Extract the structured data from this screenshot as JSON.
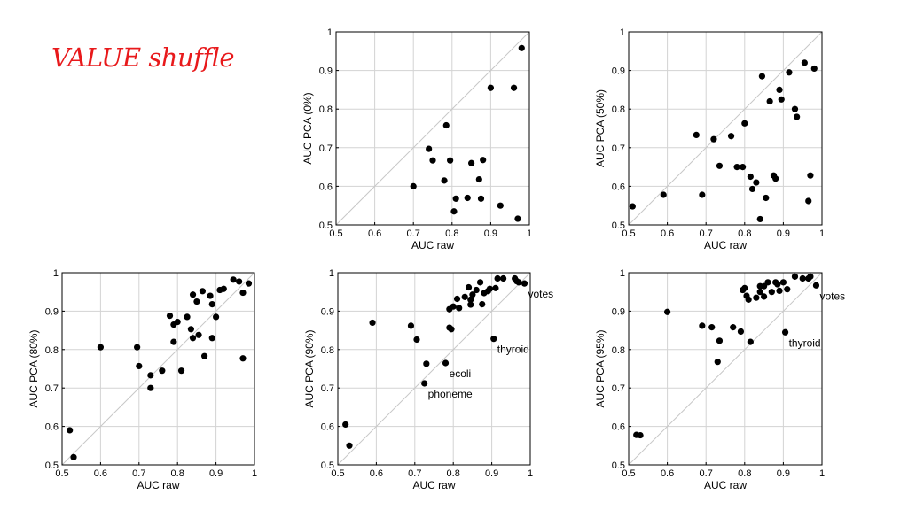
{
  "slide_title": "VALUE shuffle",
  "chart_data": [
    {
      "type": "scatter",
      "xlabel": "AUC raw",
      "ylabel": "AUC PCA (0%)",
      "xlim": [
        0.5,
        1
      ],
      "ylim": [
        0.5,
        1
      ],
      "xticks": [
        "0.5",
        "0.6",
        "0.7",
        "0.8",
        "0.9",
        "1"
      ],
      "yticks": [
        "0.5",
        "0.6",
        "0.7",
        "0.8",
        "0.9",
        "1"
      ],
      "grid": true,
      "diagonal": true,
      "points": [
        [
          0.7,
          0.6
        ],
        [
          0.74,
          0.697
        ],
        [
          0.75,
          0.667
        ],
        [
          0.78,
          0.615
        ],
        [
          0.785,
          0.758
        ],
        [
          0.795,
          0.667
        ],
        [
          0.805,
          0.535
        ],
        [
          0.81,
          0.568
        ],
        [
          0.84,
          0.57
        ],
        [
          0.85,
          0.66
        ],
        [
          0.87,
          0.618
        ],
        [
          0.875,
          0.568
        ],
        [
          0.88,
          0.668
        ],
        [
          0.9,
          0.855
        ],
        [
          0.925,
          0.55
        ],
        [
          0.96,
          0.855
        ],
        [
          0.97,
          0.516
        ],
        [
          0.98,
          0.958
        ]
      ],
      "annotations": []
    },
    {
      "type": "scatter",
      "xlabel": "AUC raw",
      "ylabel": "AUC PCA (50%)",
      "xlim": [
        0.5,
        1
      ],
      "ylim": [
        0.5,
        1
      ],
      "xticks": [
        "0.5",
        "0.6",
        "0.7",
        "0.8",
        "0.9",
        "1"
      ],
      "yticks": [
        "0.5",
        "0.6",
        "0.7",
        "0.8",
        "0.9",
        "1"
      ],
      "grid": true,
      "diagonal": true,
      "points": [
        [
          0.51,
          0.548
        ],
        [
          0.59,
          0.578
        ],
        [
          0.675,
          0.733
        ],
        [
          0.69,
          0.578
        ],
        [
          0.72,
          0.722
        ],
        [
          0.735,
          0.653
        ],
        [
          0.765,
          0.73
        ],
        [
          0.78,
          0.65
        ],
        [
          0.795,
          0.65
        ],
        [
          0.8,
          0.763
        ],
        [
          0.815,
          0.625
        ],
        [
          0.82,
          0.593
        ],
        [
          0.83,
          0.61
        ],
        [
          0.84,
          0.515
        ],
        [
          0.845,
          0.885
        ],
        [
          0.855,
          0.57
        ],
        [
          0.865,
          0.82
        ],
        [
          0.875,
          0.628
        ],
        [
          0.88,
          0.62
        ],
        [
          0.89,
          0.85
        ],
        [
          0.895,
          0.825
        ],
        [
          0.915,
          0.895
        ],
        [
          0.93,
          0.8
        ],
        [
          0.935,
          0.78
        ],
        [
          0.955,
          0.92
        ],
        [
          0.965,
          0.562
        ],
        [
          0.97,
          0.628
        ],
        [
          0.98,
          0.905
        ]
      ],
      "annotations": []
    },
    {
      "type": "scatter",
      "xlabel": "AUC raw",
      "ylabel": "AUC PCA (80%)",
      "xlim": [
        0.5,
        1
      ],
      "ylim": [
        0.5,
        1
      ],
      "xticks": [
        "0.5",
        "0.6",
        "0.7",
        "0.8",
        "0.9",
        "1"
      ],
      "yticks": [
        "0.5",
        "0.6",
        "0.7",
        "0.8",
        "0.9",
        "1"
      ],
      "grid": true,
      "diagonal": true,
      "points": [
        [
          0.52,
          0.59
        ],
        [
          0.53,
          0.52
        ],
        [
          0.6,
          0.806
        ],
        [
          0.695,
          0.806
        ],
        [
          0.7,
          0.757
        ],
        [
          0.73,
          0.733
        ],
        [
          0.73,
          0.7
        ],
        [
          0.76,
          0.745
        ],
        [
          0.78,
          0.888
        ],
        [
          0.79,
          0.82
        ],
        [
          0.79,
          0.865
        ],
        [
          0.8,
          0.872
        ],
        [
          0.81,
          0.745
        ],
        [
          0.825,
          0.885
        ],
        [
          0.835,
          0.853
        ],
        [
          0.84,
          0.83
        ],
        [
          0.84,
          0.943
        ],
        [
          0.85,
          0.925
        ],
        [
          0.855,
          0.838
        ],
        [
          0.865,
          0.952
        ],
        [
          0.87,
          0.783
        ],
        [
          0.885,
          0.94
        ],
        [
          0.89,
          0.918
        ],
        [
          0.89,
          0.83
        ],
        [
          0.9,
          0.885
        ],
        [
          0.91,
          0.955
        ],
        [
          0.92,
          0.958
        ],
        [
          0.945,
          0.982
        ],
        [
          0.96,
          0.977
        ],
        [
          0.97,
          0.948
        ],
        [
          0.97,
          0.777
        ],
        [
          0.985,
          0.972
        ]
      ],
      "annotations": []
    },
    {
      "type": "scatter",
      "xlabel": "AUC raw",
      "ylabel": "AUC PCA (90%)",
      "xlim": [
        0.5,
        1
      ],
      "ylim": [
        0.5,
        1
      ],
      "xticks": [
        "0.5",
        "0.6",
        "0.7",
        "0.8",
        "0.9",
        "1"
      ],
      "yticks": [
        "0.5",
        "0.6",
        "0.7",
        "0.8",
        "0.9",
        "1"
      ],
      "grid": true,
      "diagonal": true,
      "points": [
        [
          0.52,
          0.605
        ],
        [
          0.53,
          0.55
        ],
        [
          0.59,
          0.87
        ],
        [
          0.69,
          0.862
        ],
        [
          0.705,
          0.826
        ],
        [
          0.725,
          0.712
        ],
        [
          0.73,
          0.763
        ],
        [
          0.78,
          0.765
        ],
        [
          0.79,
          0.905
        ],
        [
          0.79,
          0.857
        ],
        [
          0.795,
          0.853
        ],
        [
          0.8,
          0.912
        ],
        [
          0.81,
          0.932
        ],
        [
          0.815,
          0.908
        ],
        [
          0.83,
          0.937
        ],
        [
          0.84,
          0.962
        ],
        [
          0.845,
          0.93
        ],
        [
          0.845,
          0.917
        ],
        [
          0.85,
          0.943
        ],
        [
          0.86,
          0.955
        ],
        [
          0.87,
          0.975
        ],
        [
          0.875,
          0.918
        ],
        [
          0.88,
          0.947
        ],
        [
          0.89,
          0.952
        ],
        [
          0.895,
          0.958
        ],
        [
          0.905,
          0.828
        ],
        [
          0.91,
          0.96
        ],
        [
          0.915,
          0.985
        ],
        [
          0.93,
          0.985
        ],
        [
          0.96,
          0.985
        ],
        [
          0.965,
          0.978
        ],
        [
          0.97,
          0.975
        ],
        [
          0.985,
          0.972
        ]
      ],
      "annotations": [
        {
          "text": "votes",
          "x": 0.985,
          "y": 0.972
        },
        {
          "text": "thyroid",
          "x": 0.905,
          "y": 0.828
        },
        {
          "text": "ecoli",
          "x": 0.78,
          "y": 0.765
        },
        {
          "text": "phoneme",
          "x": 0.725,
          "y": 0.712
        }
      ]
    },
    {
      "type": "scatter",
      "xlabel": "AUC raw",
      "ylabel": "AUC PCA (95%)",
      "xlim": [
        0.5,
        1
      ],
      "ylim": [
        0.5,
        1
      ],
      "xticks": [
        "0.5",
        "0.6",
        "0.7",
        "0.8",
        "0.9",
        "1"
      ],
      "yticks": [
        "0.5",
        "0.6",
        "0.7",
        "0.8",
        "0.9",
        "1"
      ],
      "grid": true,
      "diagonal": true,
      "points": [
        [
          0.52,
          0.578
        ],
        [
          0.53,
          0.577
        ],
        [
          0.6,
          0.898
        ],
        [
          0.69,
          0.862
        ],
        [
          0.715,
          0.858
        ],
        [
          0.73,
          0.768
        ],
        [
          0.735,
          0.823
        ],
        [
          0.77,
          0.858
        ],
        [
          0.79,
          0.847
        ],
        [
          0.795,
          0.955
        ],
        [
          0.8,
          0.96
        ],
        [
          0.805,
          0.94
        ],
        [
          0.81,
          0.93
        ],
        [
          0.815,
          0.82
        ],
        [
          0.83,
          0.935
        ],
        [
          0.84,
          0.965
        ],
        [
          0.84,
          0.95
        ],
        [
          0.85,
          0.938
        ],
        [
          0.85,
          0.965
        ],
        [
          0.86,
          0.975
        ],
        [
          0.87,
          0.95
        ],
        [
          0.88,
          0.975
        ],
        [
          0.885,
          0.97
        ],
        [
          0.89,
          0.953
        ],
        [
          0.9,
          0.975
        ],
        [
          0.905,
          0.845
        ],
        [
          0.91,
          0.957
        ],
        [
          0.93,
          0.99
        ],
        [
          0.95,
          0.985
        ],
        [
          0.965,
          0.985
        ],
        [
          0.97,
          0.99
        ],
        [
          0.985,
          0.967
        ]
      ],
      "annotations": [
        {
          "text": "votes",
          "x": 0.985,
          "y": 0.967
        },
        {
          "text": "thyroid",
          "x": 0.905,
          "y": 0.845
        }
      ]
    }
  ]
}
